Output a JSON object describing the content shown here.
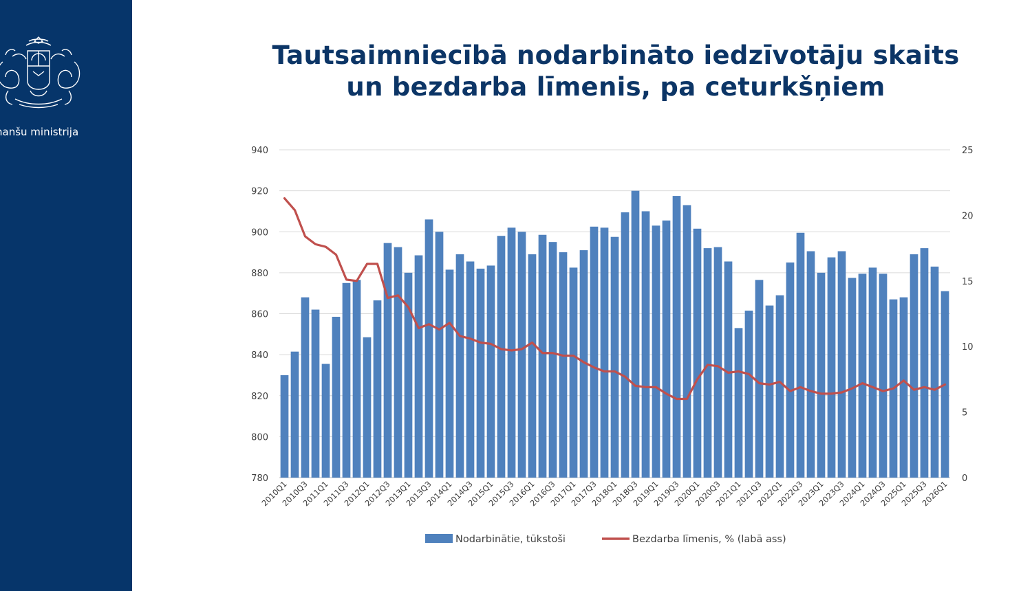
{
  "slide": {
    "title_line1": "Tautsaimniecībā nodarbināto iedzīvotāju skaits",
    "title_line2": "un bezdarba līmenis, pa ceturkšņiem",
    "ministry": "nanšu ministrija",
    "colors": {
      "sidebar": "#06356a",
      "title": "#0c3566"
    }
  },
  "chart_data": {
    "type": "bar",
    "title": "",
    "categories": [
      "2010Q1",
      "2010Q2",
      "2010Q3",
      "2010Q4",
      "2011Q1",
      "2011Q2",
      "2011Q3",
      "2011Q4",
      "2012Q1",
      "2012Q2",
      "2012Q3",
      "2012Q4",
      "2013Q1",
      "2013Q2",
      "2013Q3",
      "2013Q4",
      "2014Q1",
      "2014Q2",
      "2014Q3",
      "2014Q4",
      "2015Q1",
      "2015Q2",
      "2015Q3",
      "2015Q4",
      "2016Q1",
      "2016Q2",
      "2016Q3",
      "2016Q4",
      "2017Q1",
      "2017Q2",
      "2017Q3",
      "2017Q4",
      "2018Q1",
      "2018Q2",
      "2018Q3",
      "2018Q4",
      "2019Q1",
      "2019Q2",
      "2019Q3",
      "2019Q4",
      "2020Q1",
      "2020Q2",
      "2020Q3",
      "2020Q4",
      "2021Q1",
      "2021Q2",
      "2021Q3",
      "2021Q4",
      "2022Q1",
      "2022Q2",
      "2022Q3",
      "2022Q4",
      "2023Q1",
      "2023Q2",
      "2023Q3",
      "2023Q4",
      "2024Q1",
      "2024Q2",
      "2024Q3",
      "2024Q4",
      "2025Q1",
      "2025Q2",
      "2025Q3",
      "2025Q4",
      "2026Q1"
    ],
    "x_tick_labels": [
      "2010Q1",
      "2010Q3",
      "2011Q1",
      "2011Q3",
      "2012Q1",
      "2012Q3",
      "2013Q1",
      "2013Q3",
      "2014Q1",
      "2014Q3",
      "2015Q1",
      "2015Q3",
      "2016Q1",
      "2016Q3",
      "2017Q1",
      "2017Q3",
      "2018Q1",
      "2018Q3",
      "2019Q1",
      "2019Q3",
      "2020Q1",
      "2020Q3",
      "2021Q1",
      "2021Q3",
      "2022Q1",
      "2022Q3",
      "2023Q1",
      "2023Q3",
      "2024Q1",
      "2024Q3",
      "2025Q1",
      "2025Q3",
      "2026Q1"
    ],
    "series": [
      {
        "name": "Nodarbinātie, tūkstoši",
        "kind": "bar",
        "axis": "left",
        "color": "#4f81bd",
        "values": [
          830,
          841.5,
          868,
          862,
          835.5,
          858.5,
          875,
          876.5,
          848.5,
          866.5,
          894.5,
          892.5,
          880,
          888.5,
          906,
          900,
          881.5,
          889,
          885.5,
          882,
          883.5,
          898,
          902,
          900,
          889,
          898.5,
          895,
          890,
          882.5,
          891,
          902.5,
          902,
          897.5,
          909.5,
          920,
          910,
          903,
          905.5,
          917.5,
          913,
          901.5,
          892,
          892.5,
          885.5,
          853,
          861.5,
          876.5,
          864,
          869,
          885,
          899.5,
          890.5,
          880,
          887.5,
          890.5,
          877.5,
          879.5,
          882.5,
          879.5,
          867,
          868,
          889,
          892,
          883,
          871
        ]
      },
      {
        "name": "Bezdarba līmenis, % (labā ass)",
        "kind": "line",
        "axis": "right",
        "color": "#c0504d",
        "values": [
          21.3,
          20.4,
          18.4,
          17.8,
          17.6,
          17.0,
          15.1,
          15.0,
          16.3,
          16.3,
          13.7,
          13.9,
          13.0,
          11.4,
          11.7,
          11.3,
          11.8,
          10.8,
          10.6,
          10.3,
          10.2,
          9.8,
          9.7,
          9.8,
          10.3,
          9.5,
          9.5,
          9.3,
          9.3,
          8.8,
          8.4,
          8.1,
          8.1,
          7.7,
          7.0,
          6.9,
          6.9,
          6.4,
          6.0,
          6.0,
          7.5,
          8.6,
          8.5,
          8.0,
          8.1,
          7.9,
          7.2,
          7.1,
          7.3,
          6.6,
          6.9,
          6.6,
          6.4,
          6.4,
          6.5,
          6.8,
          7.2,
          6.9,
          6.6,
          6.8,
          7.4,
          6.7,
          6.9,
          6.7,
          7.1
        ]
      }
    ],
    "y_left": {
      "min": 780,
      "max": 940,
      "ticks": [
        780,
        800,
        820,
        840,
        860,
        880,
        900,
        920,
        940
      ]
    },
    "y_right": {
      "min": 0,
      "max": 25,
      "ticks": [
        0,
        5,
        10,
        15,
        20,
        25
      ]
    },
    "grid": true,
    "legend": "bottom"
  }
}
